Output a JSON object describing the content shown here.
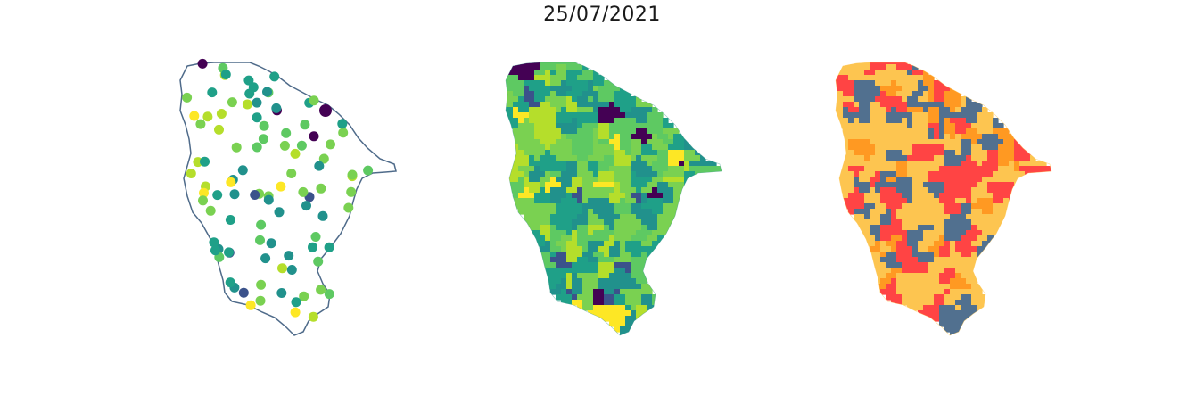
{
  "title": "25/07/2021",
  "colors": {
    "outline": "#4f6b8a",
    "viridis": [
      "#440154",
      "#3b528b",
      "#21918c",
      "#1fa088",
      "#5ec962",
      "#7ad151",
      "#b5de2b",
      "#fde725"
    ],
    "classes": [
      "#51708f",
      "#ff4444",
      "#ff9922",
      "#fdc550"
    ]
  },
  "maps": [
    {
      "name": "station-points",
      "style": "points"
    },
    {
      "name": "municipalities-viridis",
      "style": "choropleth-viridis"
    },
    {
      "name": "municipalities-classes",
      "style": "choropleth-classes"
    }
  ]
}
